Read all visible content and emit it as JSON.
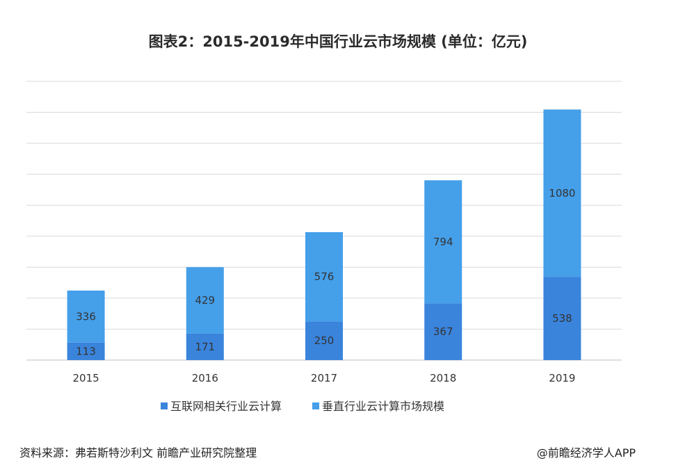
{
  "chart_data": {
    "type": "bar",
    "stacked": true,
    "title": "图表2：2015-2019年中国行业云市场规模 (单位：亿元)",
    "categories": [
      "2015",
      "2016",
      "2017",
      "2018",
      "2019"
    ],
    "series": [
      {
        "name": "互联网相关行业云计算",
        "values": [
          113,
          171,
          250,
          367,
          538
        ],
        "color": "#3a84dc"
      },
      {
        "name": "垂直行业云计算市场规模",
        "values": [
          336,
          429,
          576,
          794,
          1080
        ],
        "color": "#459fe9"
      }
    ],
    "ylim": [
      0,
      1800
    ],
    "grid": true,
    "legend_position": "bottom"
  },
  "footer": {
    "source": "资料来源：弗若斯特沙利文 前瞻产业研究院整理",
    "credit": "@前瞻经济学人APP"
  }
}
